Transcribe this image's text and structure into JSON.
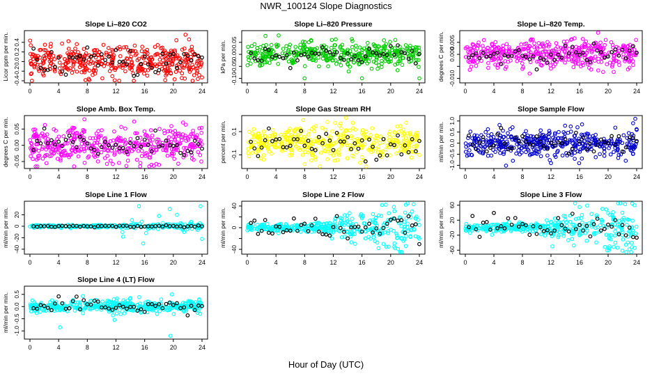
{
  "title": "NWR_100124  Slope Diagnostics",
  "xlabel": "Hour of Day (UTC)",
  "x_ticks": [
    0,
    4,
    8,
    12,
    16,
    20,
    24
  ],
  "highlight_color": "#000000",
  "chart_data": [
    {
      "type": "scatter",
      "title": "Slope Li–820 CO2",
      "ylabel": "Licor ppm per min.",
      "color": "#ff0000",
      "xlim": [
        0,
        24
      ],
      "ylim": [
        -0.4,
        0.6
      ],
      "yticks": [
        -0.4,
        -0.2,
        0.0,
        0.2,
        0.4
      ],
      "ytick_labels": [
        "-0.4",
        "-0.2",
        "0.0",
        "0.2",
        "0.4"
      ],
      "density": 420,
      "spread": 0.16,
      "outliers": [
        [
          21.7,
          0.56
        ],
        [
          8.2,
          -0.36
        ],
        [
          10.1,
          -0.35
        ],
        [
          24.0,
          -0.33
        ],
        [
          23.6,
          -0.28
        ]
      ],
      "highlight_spread": 0.15
    },
    {
      "type": "scatter",
      "title": "Slope Li–820 Pressure",
      "ylabel": "kPa per min.",
      "color": "#00cc00",
      "xlim": [
        0,
        24
      ],
      "ylim": [
        -0.11,
        0.09
      ],
      "yticks": [
        -0.1,
        -0.05,
        0.0,
        0.05
      ],
      "ytick_labels": [
        "-0.10",
        "-0.05",
        "0.00",
        "0.05"
      ],
      "density": 420,
      "spread": 0.025,
      "outliers": [
        [
          8.0,
          -0.1
        ],
        [
          10.0,
          -0.05
        ],
        [
          16.0,
          -0.1
        ],
        [
          24.0,
          -0.1
        ],
        [
          11.8,
          0.06
        ]
      ],
      "highlight_spread": 0.02
    },
    {
      "type": "scatter",
      "title": "Slope Li–820 Temp.",
      "ylabel": "degrees C per min.",
      "color": "#ff00ff",
      "xlim": [
        0,
        24
      ],
      "ylim": [
        -0.011,
        0.009
      ],
      "yticks": [
        -0.01,
        -0.005,
        0.0,
        0.005
      ],
      "ytick_labels": [
        "-0.010",
        "",
        "0.000",
        "0.005"
      ],
      "density": 420,
      "spread": 0.0028,
      "outliers": [
        [
          18.6,
          0.009
        ],
        [
          5.6,
          -0.006
        ],
        [
          9.0,
          -0.008
        ],
        [
          8.0,
          -0.006
        ]
      ],
      "highlight_spread": 0.002
    },
    {
      "type": "scatter",
      "title": "Slope Amb. Box Temp.",
      "ylabel": "degrees C per min.",
      "color": "#ff00ff",
      "xlim": [
        0,
        24
      ],
      "ylim": [
        -0.065,
        0.085
      ],
      "yticks": [
        -0.05,
        0.0,
        0.05
      ],
      "ytick_labels": [
        "-0.05",
        "0.00",
        "0.05"
      ],
      "density": 420,
      "spread": 0.027,
      "outliers": [
        [
          7.6,
          0.08
        ],
        [
          2.3,
          -0.055
        ],
        [
          18.0,
          -0.06
        ],
        [
          23.9,
          -0.05
        ]
      ],
      "highlight_spread": 0.02
    },
    {
      "type": "scatter",
      "title": "Slope Gas Stream RH",
      "ylabel": "percent per min.",
      "color": "#ffff00",
      "xlim": [
        0,
        24
      ],
      "ylim": [
        -0.2,
        0.22
      ],
      "yticks": [
        -0.1,
        0.1
      ],
      "ytick_labels": [
        "-0.1",
        "0.1"
      ],
      "density": 420,
      "spread": 0.07,
      "outliers": [
        [
          7.8,
          0.2
        ],
        [
          8.0,
          -0.18
        ],
        [
          12.2,
          -0.15
        ],
        [
          24.0,
          -0.1
        ],
        [
          16.0,
          -0.12
        ]
      ],
      "highlight_spread": 0.06
    },
    {
      "type": "scatter",
      "title": "Slope Sample Flow",
      "ylabel": "ml/min per min.",
      "color": "#0000cc",
      "xlim": [
        0,
        24
      ],
      "ylim": [
        -1.05,
        1.15
      ],
      "yticks": [
        -1.0,
        -0.5,
        0.0,
        0.5,
        1.0
      ],
      "ytick_labels": [
        "-1.0",
        "-0.5",
        "0.0",
        "0.5",
        "1.0"
      ],
      "density": 420,
      "spread": 0.3,
      "outliers": [
        [
          23.8,
          1.1
        ],
        [
          23.5,
          0.9
        ],
        [
          12.0,
          -0.9
        ],
        [
          24.0,
          0.6
        ],
        [
          21.0,
          0.7
        ]
      ],
      "highlight_spread": 0.25
    },
    {
      "type": "scatter",
      "title": "Slope Line 1 Flow",
      "ylabel": "ml/min per min.",
      "color": "#00ffff",
      "xlim": [
        0,
        24
      ],
      "ylim": [
        -45,
        40
      ],
      "yticks": [
        -40,
        -20,
        0,
        20
      ],
      "ytick_labels": [
        "-40",
        "-20",
        "0",
        "20"
      ],
      "density": 260,
      "spread": 1.2,
      "outliers": [
        [
          15.2,
          35
        ],
        [
          15.8,
          -30
        ],
        [
          13.0,
          -18
        ],
        [
          15.6,
          8
        ],
        [
          20.5,
          20
        ],
        [
          21.5,
          -10
        ],
        [
          23.8,
          35
        ],
        [
          24.0,
          -22
        ],
        [
          18.0,
          18
        ],
        [
          12.9,
          -10
        ],
        [
          16.2,
          -12
        ],
        [
          19.5,
          30
        ],
        [
          22.0,
          -5
        ]
      ],
      "highlight_spread": 0.8
    },
    {
      "type": "scatter",
      "title": "Slope Line 2 Flow",
      "ylabel": "ml/min per min.",
      "color": "#00ffff",
      "xlim": [
        0,
        24
      ],
      "ylim": [
        -45,
        45
      ],
      "yticks": [
        -40,
        -20,
        0,
        20,
        40
      ],
      "ytick_labels": [
        "-40",
        "",
        "0",
        "",
        "40"
      ],
      "density": 360,
      "spread": 4.0,
      "outliers": [
        [
          18.8,
          42
        ],
        [
          19.0,
          -30
        ],
        [
          22.7,
          25
        ],
        [
          23.0,
          30
        ],
        [
          24.0,
          -20
        ],
        [
          11.8,
          -20
        ],
        [
          16.0,
          20
        ],
        [
          17.8,
          -25
        ],
        [
          20.5,
          -35
        ],
        [
          13.0,
          18
        ]
      ],
      "highlight_spread": 10
    },
    {
      "type": "scatter",
      "title": "Slope Line 3 Flow",
      "ylabel": "ml/min per min.",
      "color": "#00ffff",
      "xlim": [
        0,
        24
      ],
      "ylim": [
        -65,
        65
      ],
      "yticks": [
        -60,
        -20,
        20,
        60
      ],
      "ytick_labels": [
        "-60",
        "-20",
        "20",
        "60"
      ],
      "density": 360,
      "spread": 6.0,
      "outliers": [
        [
          23.7,
          60
        ],
        [
          12.2,
          -50
        ],
        [
          20.2,
          -50
        ],
        [
          19.2,
          50
        ],
        [
          16.0,
          55
        ],
        [
          13.0,
          -25
        ],
        [
          22.0,
          40
        ],
        [
          14.0,
          30
        ],
        [
          17.0,
          -35
        ],
        [
          21.0,
          -40
        ]
      ],
      "highlight_spread": 15
    },
    {
      "type": "scatter",
      "title": "Slope Line 4 (LT) Flow",
      "ylabel": "ml/min per min.",
      "color": "#00ffff",
      "xlim": [
        0,
        24
      ],
      "ylim": [
        -1.25,
        0.75
      ],
      "yticks": [
        -1.0,
        -0.5,
        0.0,
        0.5
      ],
      "ytick_labels": [
        "-1.0",
        "-0.5",
        "0.0",
        "0.5"
      ],
      "density": 420,
      "spread": 0.13,
      "outliers": [
        [
          19.6,
          -1.2
        ],
        [
          4.2,
          -0.85
        ],
        [
          19.8,
          0.5
        ],
        [
          11.8,
          -0.55
        ],
        [
          14.0,
          0.35
        ]
      ],
      "highlight_spread": 0.15
    }
  ]
}
